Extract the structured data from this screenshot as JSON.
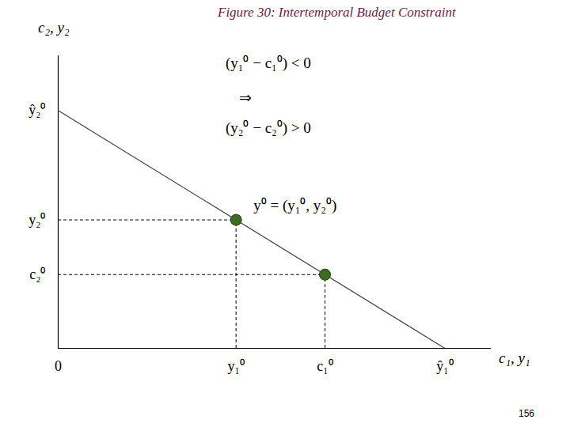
{
  "chart_data": {
    "type": "line",
    "title": "Figure 30: Intertemporal Budget Constraint",
    "x_label": "c₁, y₁",
    "y_label": "c₂, y₂",
    "xlim": [
      0,
      11.2
    ],
    "ylim": [
      0,
      12.3
    ],
    "xticks": [
      0,
      {
        "value": 4.6,
        "label": "y₁⁰"
      },
      {
        "value": 6.9,
        "label": "c₁⁰"
      },
      {
        "value": 10,
        "label": "ŷ₁⁰"
      }
    ],
    "yticks": [
      {
        "value": 3.1,
        "label": "c₂⁰"
      },
      {
        "value": 5.4,
        "label": "y₂⁰"
      },
      {
        "value": 10,
        "label": "ŷ₂⁰"
      }
    ],
    "grid": false,
    "series": [
      {
        "type": "line",
        "color": "#404040",
        "line_style": "solid",
        "x": [
          0,
          10
        ],
        "values": [
          10,
          0
        ]
      },
      {
        "type": "scatter",
        "color": "#3d6b1f",
        "marker": "circle",
        "x": [
          4.6,
          6.9
        ],
        "values": [
          5.4,
          3.1
        ],
        "labels": [
          "y⁰ = (y₁⁰, y₂⁰)",
          null
        ]
      }
    ],
    "annotations": [
      "(y₁⁰ − c₁⁰) < 0",
      "⇒",
      "(y₂⁰ − c₂⁰) > 0"
    ],
    "page_number": 156
  }
}
